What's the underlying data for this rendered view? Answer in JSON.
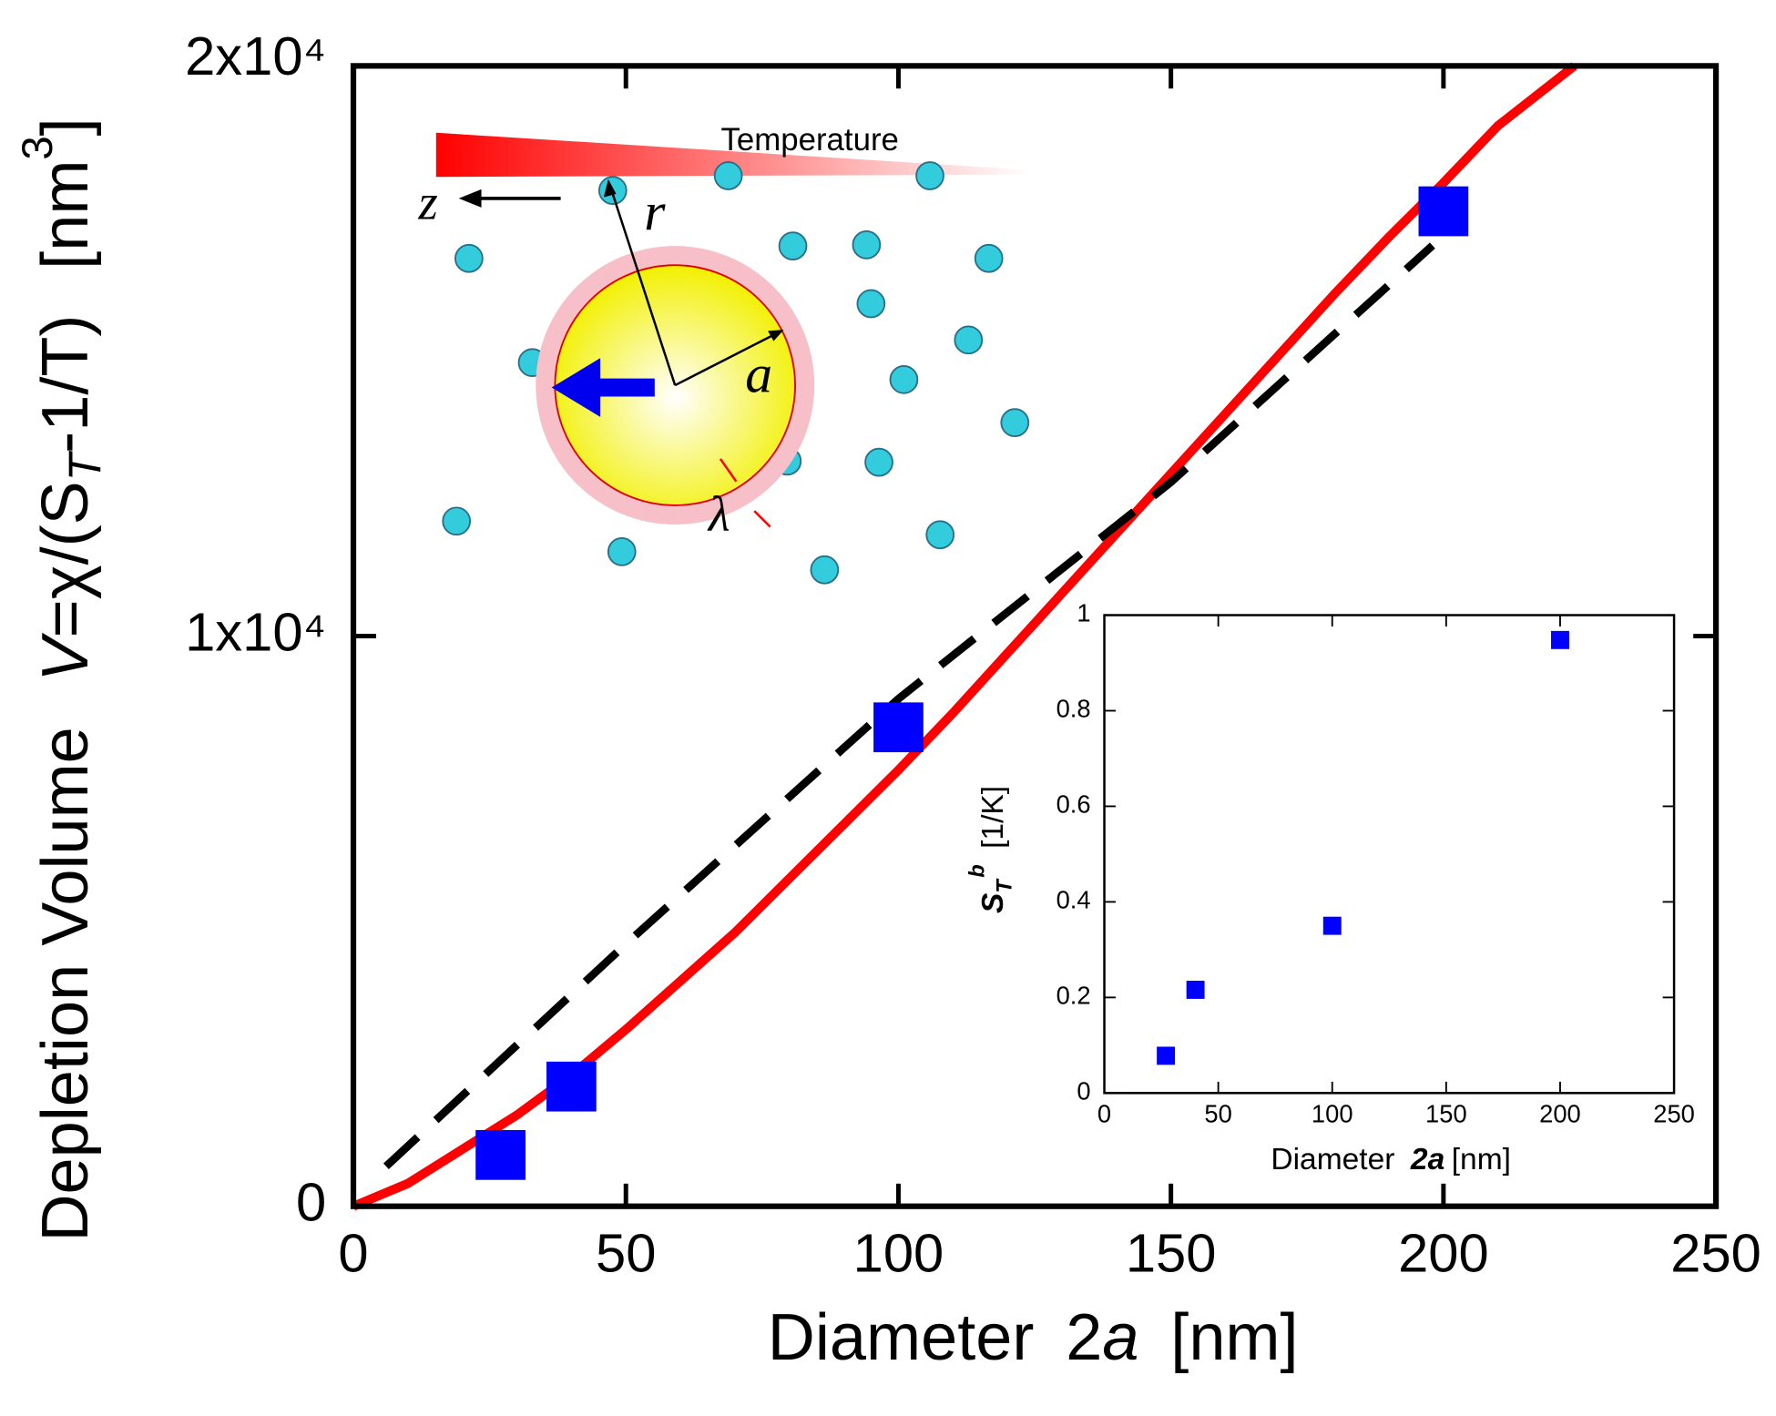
{
  "chart_data": [
    {
      "type": "scatter",
      "x_label": [
        "Diameter",
        "2",
        "a",
        "[nm]"
      ],
      "y_label": [
        "Depletion Volume",
        "V",
        "=χ/(S",
        "T",
        "-1/T)",
        "[nm",
        "3",
        "]"
      ],
      "xlim": [
        0,
        250
      ],
      "xticks": [
        0,
        50,
        100,
        150,
        200,
        250
      ],
      "ylim": [
        0,
        20000
      ],
      "yticks": [
        0,
        {
          "value": 10000,
          "label": "1x10⁴"
        },
        {
          "value": 20000,
          "label": "2x10⁴"
        }
      ],
      "annotations": [
        "Temperature",
        "z",
        "r",
        "a",
        "λ"
      ],
      "series": [
        {
          "kind": "line",
          "color": "#ff0000",
          "dashed": false,
          "x": [
            0,
            10,
            20,
            30,
            40,
            50,
            60,
            70,
            80,
            90,
            100,
            110,
            120,
            130,
            140,
            150,
            160,
            170,
            180,
            190,
            200,
            210,
            224
          ],
          "values": [
            0,
            400,
            1000,
            1600,
            2300,
            3100,
            3950,
            4800,
            5750,
            6700,
            7650,
            8650,
            9700,
            10750,
            11800,
            12850,
            13900,
            14950,
            16000,
            17000,
            17950,
            18950,
            20000
          ]
        },
        {
          "kind": "line",
          "color": "#000000",
          "dashed": true,
          "x": [
            6,
            50,
            100,
            150,
            198
          ],
          "values": [
            700,
            4600,
            8900,
            12700,
            16850
          ]
        },
        {
          "kind": "scatter",
          "color": "#0000ff",
          "x": [
            27,
            40,
            100,
            200
          ],
          "values": [
            900,
            2100,
            8400,
            17450
          ]
        }
      ]
    },
    {
      "type": "scatter",
      "x_label": [
        "Diameter",
        "2a",
        "[nm]"
      ],
      "y_label": [
        "S",
        "T",
        "b",
        "[1/K]"
      ],
      "xlim": [
        0,
        250
      ],
      "xticks": [
        0,
        50,
        100,
        150,
        200,
        250
      ],
      "ylim": [
        0,
        1
      ],
      "yticks": [
        0,
        0.2,
        0.4,
        0.6,
        0.8,
        1
      ],
      "series": [
        {
          "kind": "scatter",
          "color": "#0000ff",
          "x": [
            27,
            40,
            100,
            200
          ],
          "values": [
            0.078,
            0.216,
            0.35,
            0.948
          ]
        }
      ]
    }
  ]
}
